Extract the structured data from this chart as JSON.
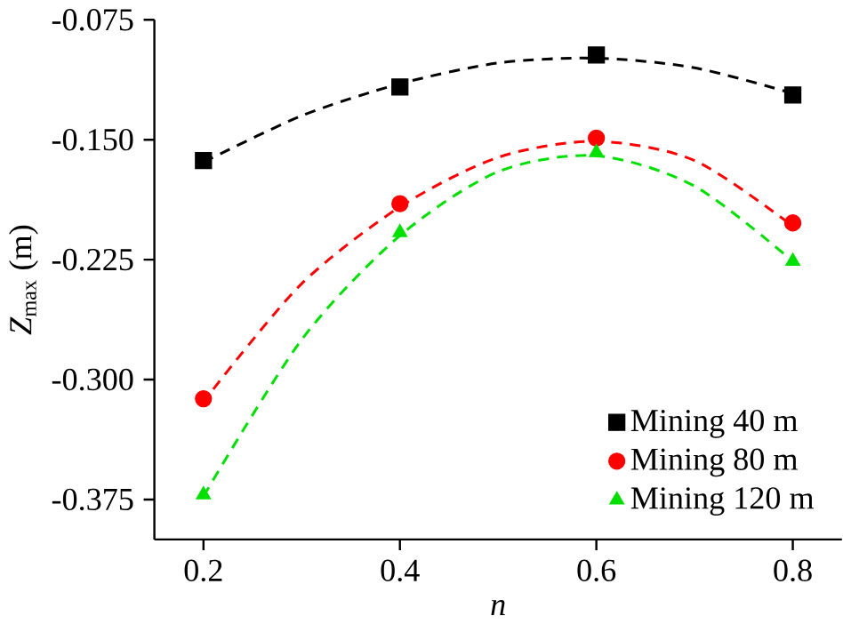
{
  "chart_data": {
    "type": "scatter",
    "xlabel": "n",
    "ylabel": "*Z*$_{max}$ (m)",
    "x": [
      0.2,
      0.4,
      0.6,
      0.8
    ],
    "series": [
      {
        "name": "Mining 40 m",
        "color": "#000000",
        "marker": "square",
        "values": [
          -0.163,
          -0.117,
          -0.097,
          -0.122
        ]
      },
      {
        "name": "Mining 80 m",
        "color": "#ff0000",
        "marker": "circle",
        "values": [
          -0.312,
          -0.19,
          -0.149,
          -0.202
        ]
      },
      {
        "name": "Mining 120 m",
        "color": "#00e000",
        "marker": "triangle",
        "values": [
          -0.372,
          -0.208,
          -0.158,
          -0.226
        ]
      },
      {
        "type": "line",
        "color": "#000000",
        "line_style": "dashed",
        "marker": "none",
        "x": [
          0.2,
          0.3,
          0.4,
          0.5,
          0.6,
          0.7,
          0.8
        ],
        "values": [
          -0.164,
          -0.135,
          -0.115,
          -0.102,
          -0.099,
          -0.105,
          -0.121
        ]
      },
      {
        "type": "line",
        "color": "#ff0000",
        "line_style": "dashed",
        "marker": "none",
        "x": [
          0.21,
          0.3,
          0.4,
          0.5,
          0.6,
          0.7,
          0.8
        ],
        "values": [
          -0.306,
          -0.24,
          -0.192,
          -0.161,
          -0.151,
          -0.163,
          -0.204
        ]
      },
      {
        "type": "line",
        "color": "#00e000",
        "line_style": "dashed",
        "marker": "none",
        "x": [
          0.2,
          0.3,
          0.4,
          0.5,
          0.6,
          0.7,
          0.8
        ],
        "values": [
          -0.373,
          -0.275,
          -0.21,
          -0.17,
          -0.16,
          -0.179,
          -0.226
        ]
      }
    ],
    "xlim": [
      0.15,
      0.85
    ],
    "ylim": [
      -0.4,
      -0.075
    ],
    "xticks": [
      0.2,
      0.4,
      0.6,
      0.8
    ],
    "yticks": [
      {
        "value": -0.375,
        "label": "-0.375"
      },
      {
        "value": -0.3,
        "label": "-0.300"
      },
      {
        "value": -0.225,
        "label": "-0.225"
      },
      {
        "value": -0.15,
        "label": "-0.150"
      },
      {
        "value": -0.075,
        "label": "-0.075"
      }
    ],
    "grid": false,
    "legend": "bottom right"
  }
}
